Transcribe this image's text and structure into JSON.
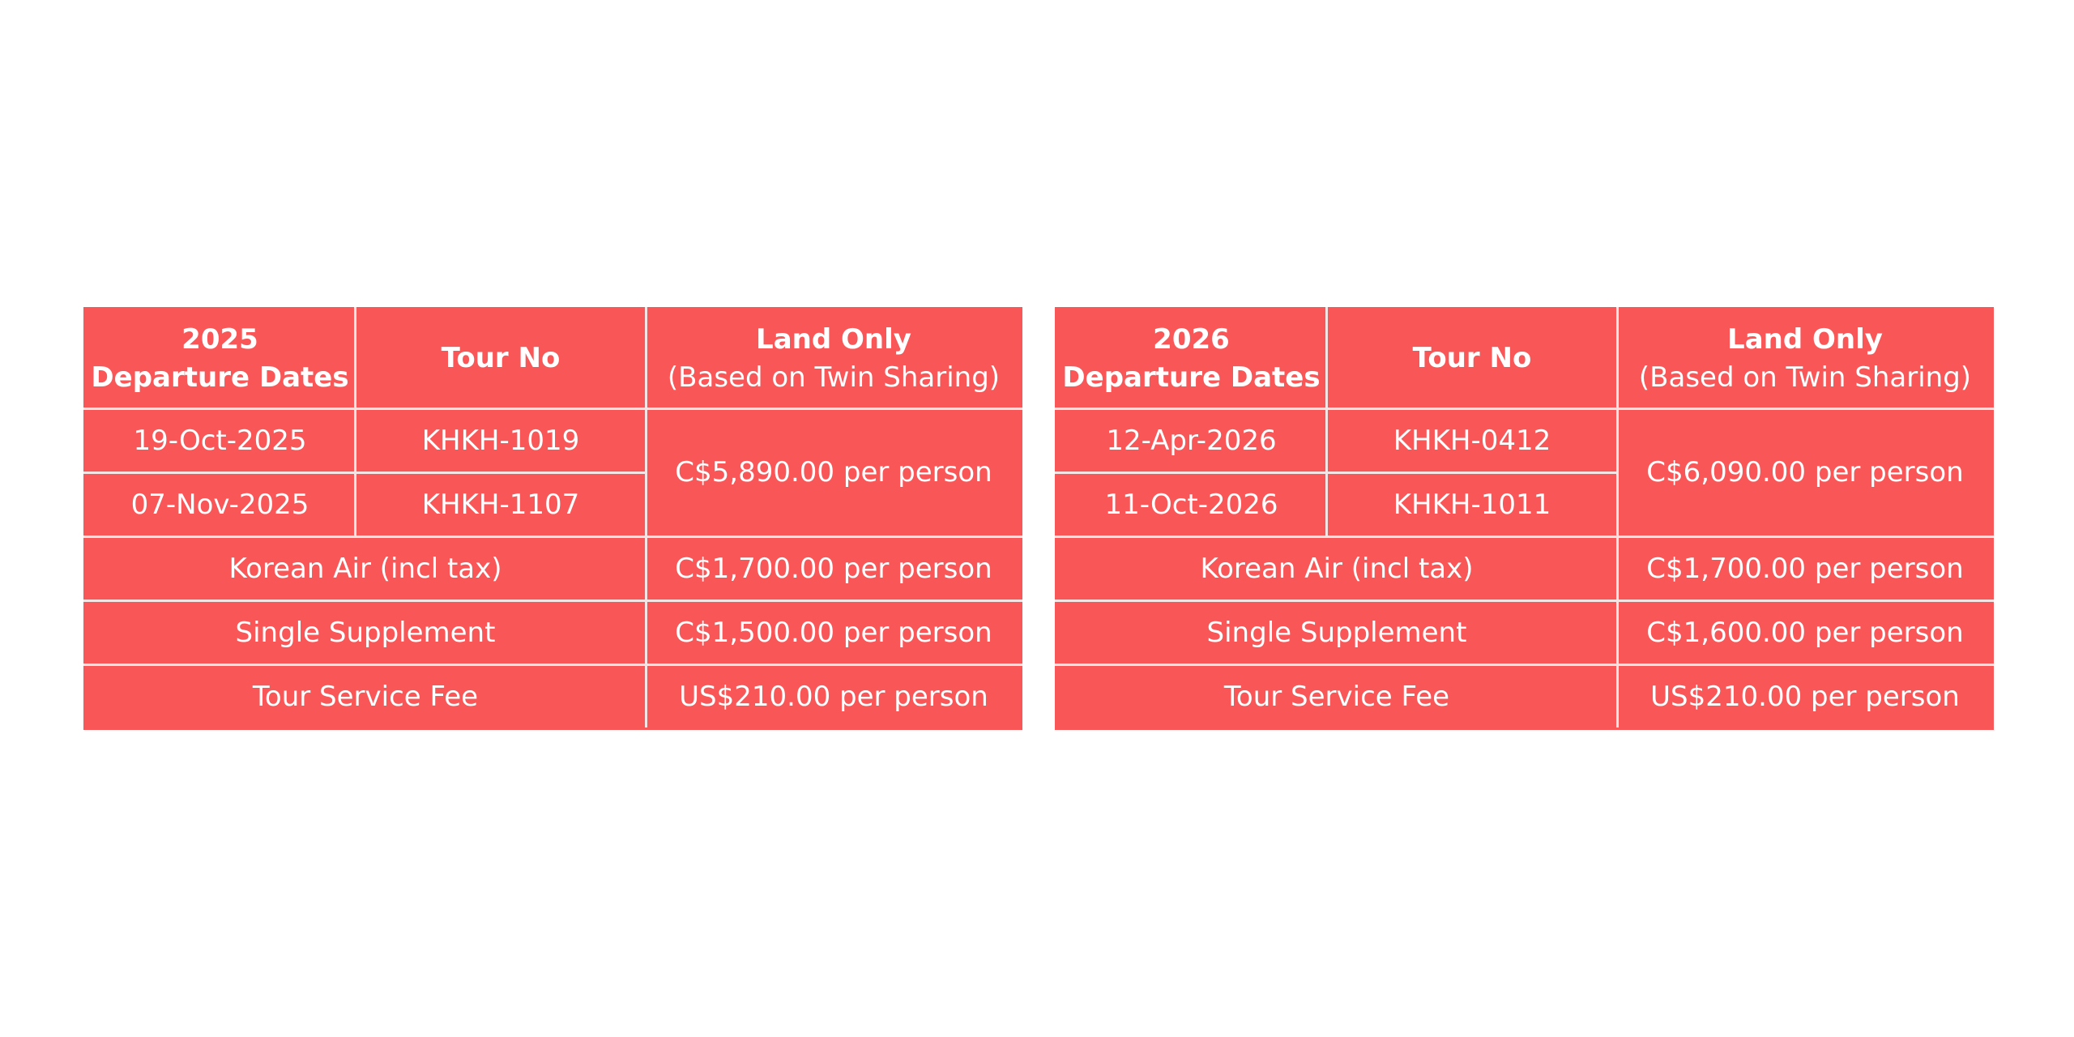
{
  "tables": [
    {
      "header": {
        "year": "2025",
        "departure_label": "Departure Dates",
        "tour_no_label": "Tour No",
        "land_only_label": "Land Only",
        "land_only_sub": "(Based on Twin Sharing)"
      },
      "departures": [
        {
          "date": "19-Oct-2025",
          "tour_no": "KHKH-1019"
        },
        {
          "date": "07-Nov-2025",
          "tour_no": "KHKH-1107"
        }
      ],
      "land_price": "C$5,890.00 per person",
      "extras": [
        {
          "label": "Korean Air (incl tax)",
          "price": "C$1,700.00 per person"
        },
        {
          "label": "Single Supplement",
          "price": "C$1,500.00 per person"
        },
        {
          "label": "Tour Service Fee",
          "price": "US$210.00 per person"
        }
      ]
    },
    {
      "header": {
        "year": "2026",
        "departure_label": "Departure Dates",
        "tour_no_label": "Tour No",
        "land_only_label": "Land Only",
        "land_only_sub": "(Based on Twin Sharing)"
      },
      "departures": [
        {
          "date": "12-Apr-2026",
          "tour_no": "KHKH-0412"
        },
        {
          "date": "11-Oct-2026",
          "tour_no": "KHKH-1011"
        }
      ],
      "land_price": "C$6,090.00 per person",
      "extras": [
        {
          "label": "Korean Air (incl tax)",
          "price": "C$1,700.00 per person"
        },
        {
          "label": "Single Supplement",
          "price": "C$1,600.00 per person"
        },
        {
          "label": "Tour Service Fee",
          "price": "US$210.00 per person"
        }
      ]
    }
  ],
  "colors": {
    "cell_background": "#f95658",
    "cell_border": "#f5e4e4",
    "text": "#ffffff",
    "page_background": "#ffffff"
  }
}
